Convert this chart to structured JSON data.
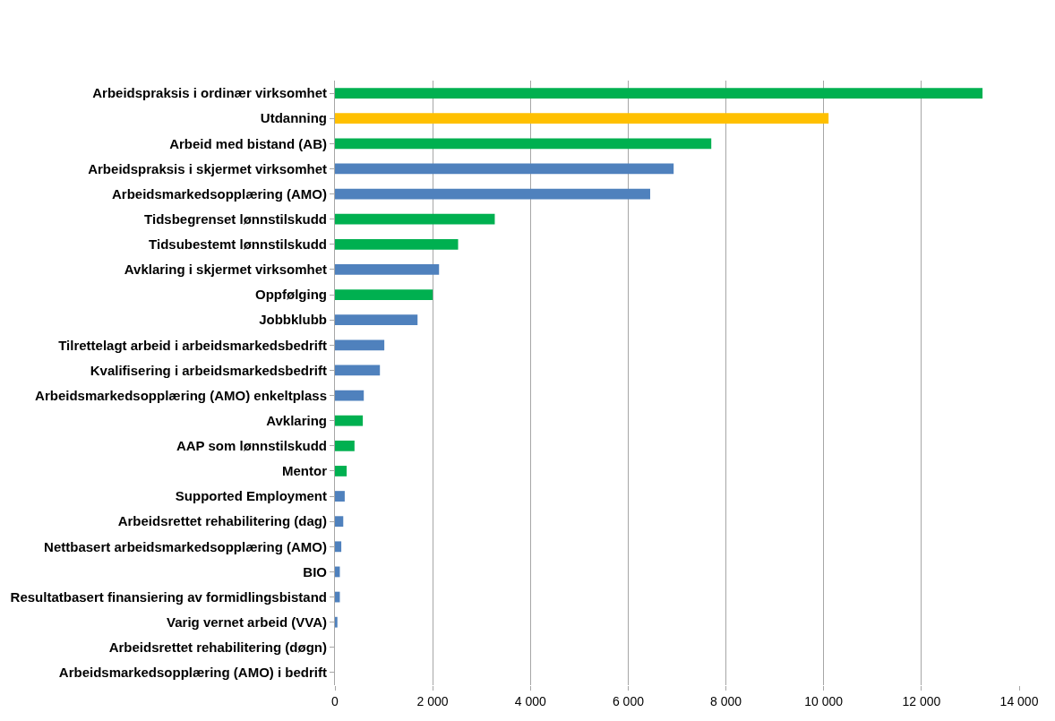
{
  "chart_data": {
    "type": "bar",
    "orientation": "horizontal",
    "categories": [
      "Arbeidspraksis i ordinær virksomhet",
      "Utdanning",
      "Arbeid med bistand (AB)",
      "Arbeidspraksis i skjermet virksomhet",
      "Arbeidsmarkedsopplæring (AMO)",
      "Tidsbegrenset lønnstilskudd",
      "Tidsubestemt lønnstilskudd",
      "Avklaring i skjermet virksomhet",
      "Oppfølging",
      "Jobbklubb",
      "Tilrettelagt arbeid i arbeidsmarkedsbedrift",
      "Kvalifisering i arbeidsmarkedsbedrift",
      "Arbeidsmarkedsopplæring (AMO) enkeltplass",
      "Avklaring",
      "AAP som lønnstilskudd",
      "Mentor",
      "Supported Employment",
      "Arbeidsrettet rehabilitering (dag)",
      "Nettbasert arbeidsmarkedsopplæring (AMO)",
      "BIO",
      "Resultatbasert finansiering av formidlingsbistand",
      "Varig vernet arbeid (VVA)",
      "Arbeidsrettet rehabilitering (døgn)",
      "Arbeidsmarkedsopplæring (AMO) i bedrift"
    ],
    "values": [
      13250,
      10100,
      7700,
      6930,
      6450,
      3270,
      2520,
      2130,
      2000,
      1690,
      1010,
      920,
      590,
      570,
      400,
      240,
      200,
      170,
      130,
      100,
      100,
      50,
      0,
      0
    ],
    "colors": [
      "#00b050",
      "#ffc000",
      "#00b050",
      "#4f81bd",
      "#4f81bd",
      "#00b050",
      "#00b050",
      "#4f81bd",
      "#00b050",
      "#4f81bd",
      "#4f81bd",
      "#4f81bd",
      "#4f81bd",
      "#00b050",
      "#00b050",
      "#00b050",
      "#4f81bd",
      "#4f81bd",
      "#4f81bd",
      "#4f81bd",
      "#4f81bd",
      "#4f81bd",
      "#4f81bd",
      "#4f81bd"
    ],
    "xlim": [
      0,
      14000
    ],
    "xticks": [
      0,
      {
        "value": 2000,
        "label": "2 000"
      },
      {
        "value": 4000,
        "label": "4 000"
      },
      {
        "value": 6000,
        "label": "6 000"
      },
      {
        "value": 8000,
        "label": "8 000"
      },
      {
        "value": 10000,
        "label": "10 000"
      },
      {
        "value": 12000,
        "label": "12 000"
      },
      {
        "value": 14000,
        "label": "14 000"
      }
    ],
    "grid": "x"
  }
}
